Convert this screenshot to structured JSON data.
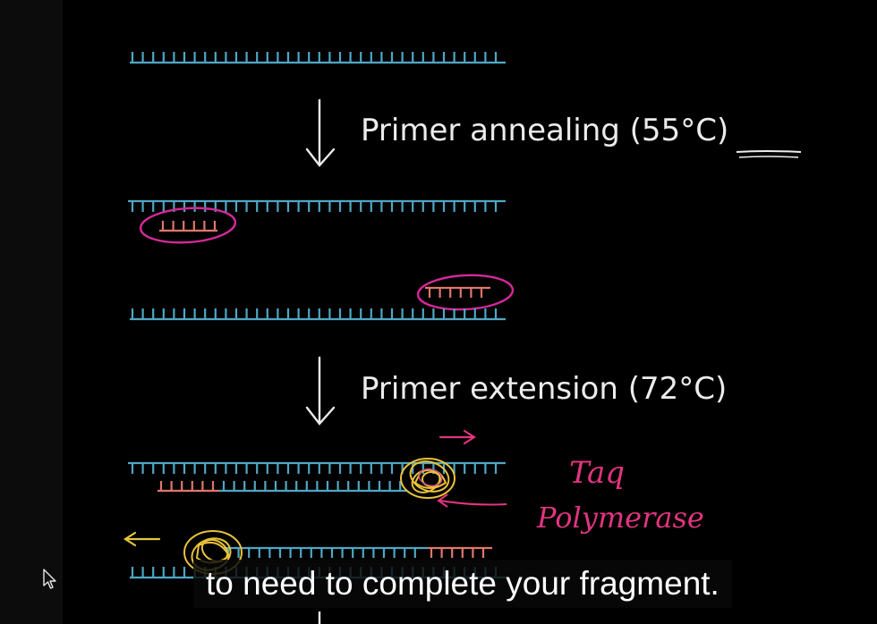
{
  "steps": {
    "annealing_label": "Primer annealing (55°C)",
    "extension_label": "Primer extension (72°C)"
  },
  "enzyme": {
    "label_line1": "Taq",
    "label_line2": "Polymerase"
  },
  "caption": {
    "text": "to need to complete your fragment."
  },
  "colors": {
    "dna_strand": "#4fa7c4",
    "primer": "#e0776a",
    "highlight_circle": "#d6289a",
    "polymerase": "#e9c23a",
    "arrow_pink": "#e0357f",
    "arrow_yellow": "#e4c640",
    "chalk": "#ececec"
  },
  "icons": {
    "down_arrow": "down-arrow-icon",
    "cursor": "mouse-pointer-icon"
  }
}
